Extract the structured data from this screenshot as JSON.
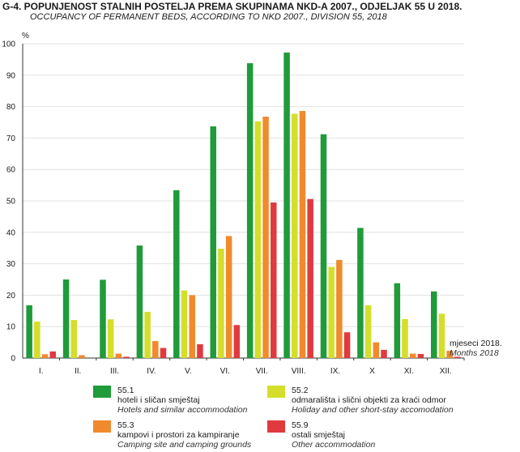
{
  "header": {
    "title": "G-4.  POPUNJENOST STALNIH POSTELJA PREMA SKUPINAMA NKD-A 2007., ODJELJAK 55 U 2018.",
    "subtitle": "OCCUPANCY OF PERMANENT BEDS, ACCORDING TO NKD 2007., DIVISION 55, 2018"
  },
  "axis": {
    "y_unit": "%",
    "x_label_hr": "mjeseci 2018.",
    "x_label_en": "Months 2018"
  },
  "legend": [
    {
      "code": "55.1",
      "hr": "hoteli i sličan smještaj",
      "en": "Hotels and similar accommodation",
      "color": "#1f9b3a"
    },
    {
      "code": "55.2",
      "hr": "odmarališta i slični objekti za kraći odmor",
      "en": "Holiday and other short-stay accomodation",
      "color": "#d4de2b"
    },
    {
      "code": "55.3",
      "hr": "kampovi i prostori za kampiranje",
      "en": "Camping site and camping grounds",
      "color": "#f08a2c"
    },
    {
      "code": "55.9",
      "hr": "ostali smještaj",
      "en": "Other accommodation",
      "color": "#e03a3f"
    }
  ],
  "chart_data": {
    "type": "bar",
    "categories": [
      "I.",
      "II.",
      "III.",
      "IV.",
      "V.",
      "VI.",
      "VII.",
      "VIII.",
      "IX.",
      "X",
      "XI.",
      "XII."
    ],
    "series": [
      {
        "name": "55.1",
        "color": "#1f9b3a",
        "values": [
          16.8,
          25.0,
          24.9,
          35.8,
          53.4,
          73.7,
          93.8,
          97.2,
          71.2,
          41.4,
          23.8,
          21.2
        ]
      },
      {
        "name": "55.2",
        "color": "#d4de2b",
        "values": [
          11.6,
          12.1,
          12.3,
          14.7,
          21.5,
          34.8,
          75.3,
          77.7,
          29.0,
          16.8,
          12.4,
          14.1
        ]
      },
      {
        "name": "55.3",
        "color": "#f08a2c",
        "values": [
          1.2,
          0.9,
          1.4,
          5.4,
          20.0,
          38.8,
          76.8,
          78.6,
          31.2,
          5.0,
          1.4,
          2.3
        ]
      },
      {
        "name": "55.9",
        "color": "#e03a3f",
        "values": [
          2.1,
          0.0,
          0.4,
          3.2,
          4.4,
          10.5,
          49.5,
          50.6,
          8.2,
          2.6,
          1.3,
          0.4
        ]
      }
    ],
    "ylim": [
      0,
      100
    ],
    "yticks": [
      0,
      10,
      20,
      30,
      40,
      50,
      60,
      70,
      80,
      90,
      100
    ],
    "grid": true
  }
}
